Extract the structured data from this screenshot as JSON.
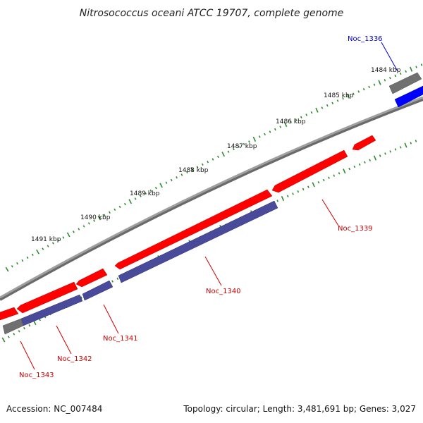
{
  "title": "Nitrosococcus oceani ATCC 19707, complete genome",
  "footer": {
    "accession": "Accession: NC_007484",
    "summary": "Topology: circular; Length: 3,481,691 bp; Genes: 3,027"
  },
  "colors": {
    "backbone": "#808080",
    "tick_dot": "#2e8b2e",
    "cds": "#ff0000",
    "cds_dark": "#cc0000",
    "gene": "#4a4a9a",
    "gene_dark": "#2e2e70",
    "gray_feature": "#707070",
    "blue_feature": "#0000ff",
    "label_red": "#cc0000",
    "label_blue": "#0000cc"
  },
  "scale": {
    "tick_labels": [
      "1484 kbp",
      "1485 kbp",
      "1486 kbp",
      "1487 kbp",
      "1488 kbp",
      "1489 kbp",
      "1490 kbp",
      "1491 kbp"
    ]
  },
  "genes": [
    {
      "id": "Noc_1336",
      "color": "label_blue"
    },
    {
      "id": "Noc_1339",
      "color": "label_red"
    },
    {
      "id": "Noc_1340",
      "color": "label_red"
    },
    {
      "id": "Noc_1341",
      "color": "label_red"
    },
    {
      "id": "Noc_1342",
      "color": "label_red"
    },
    {
      "id": "Noc_1343",
      "color": "label_red"
    }
  ]
}
